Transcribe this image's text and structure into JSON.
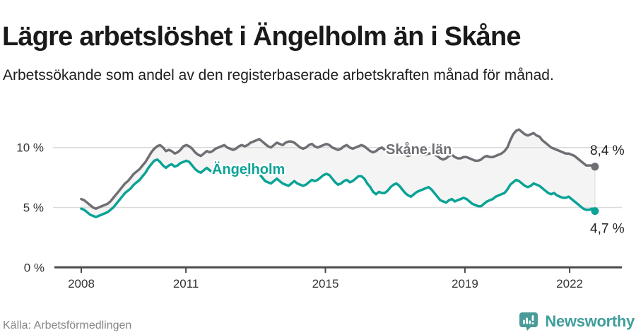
{
  "header": {
    "title": "Lägre arbetslöshet i Ängelholm än i Skåne",
    "subtitle": "Arbetssökande som andel av den registerbaserade arbetskraften månad för månad."
  },
  "footer": {
    "source": "Källa: Arbetsförmedlingen",
    "brand": "Newsworthy",
    "brand_icon": "newsworthy-chart-bubble-icon",
    "brand_color": "#3f9e9b"
  },
  "colors": {
    "skane_line": "#6e6e74",
    "angelholm_line": "#0aa396",
    "gridline": "#dadada",
    "axis": "#4b4b4b",
    "fill_between": "#f4f4f4",
    "fill_edge": "#e4e4e4",
    "tick_text": "#333333"
  },
  "chart_data": {
    "type": "line",
    "title": "Lägre arbetslöshet i Ängelholm än i Skåne",
    "subtitle": "Arbetssökande som andel av den registerbaserade arbetskraften månad för månad.",
    "xlabel": "",
    "ylabel": "",
    "frequency": "monthly",
    "x_start": {
      "year": 2008,
      "month": 1
    },
    "x_end": {
      "year": 2022,
      "month": 9
    },
    "ylim": [
      0,
      12.5
    ],
    "grid": "horizontal",
    "legend": "inline-labels",
    "fill_between_series": true,
    "x_ticks": [
      {
        "label": "2008"
      },
      {
        "label": "2011"
      },
      {
        "label": "2015"
      },
      {
        "label": "2019"
      },
      {
        "label": "2022"
      }
    ],
    "y_ticks": [
      {
        "value": 10,
        "label": "10 %"
      },
      {
        "value": 5,
        "label": "5 %"
      },
      {
        "value": 0,
        "label": "0 %"
      }
    ],
    "series": [
      {
        "name": "Skåne län",
        "color": "#6e6e74",
        "end_value": 8.4,
        "end_label": "8,4 %",
        "values": [
          5.7,
          5.6,
          5.4,
          5.2,
          5.0,
          4.9,
          5.0,
          5.1,
          5.2,
          5.3,
          5.5,
          5.8,
          6.1,
          6.4,
          6.7,
          7.0,
          7.2,
          7.5,
          7.8,
          8.0,
          8.2,
          8.5,
          8.8,
          9.2,
          9.6,
          9.9,
          10.1,
          10.2,
          10.0,
          9.7,
          9.8,
          9.7,
          9.5,
          9.6,
          9.8,
          10.1,
          10.2,
          10.1,
          9.9,
          9.6,
          9.4,
          9.3,
          9.5,
          9.7,
          9.6,
          9.7,
          9.9,
          10.0,
          10.1,
          10.2,
          10.0,
          9.9,
          9.8,
          9.9,
          10.1,
          10.2,
          10.1,
          10.2,
          10.4,
          10.5,
          10.6,
          10.7,
          10.5,
          10.3,
          10.1,
          10.0,
          10.2,
          10.4,
          10.3,
          10.2,
          10.4,
          10.5,
          10.5,
          10.4,
          10.2,
          10.0,
          9.9,
          10.0,
          10.2,
          10.3,
          10.1,
          10.0,
          10.1,
          10.2,
          10.3,
          10.2,
          10.0,
          9.9,
          9.8,
          9.9,
          10.1,
          10.2,
          10.0,
          9.9,
          10.0,
          10.1,
          10.2,
          10.1,
          9.9,
          9.7,
          9.6,
          9.7,
          9.9,
          10.0,
          9.8,
          9.7,
          9.7,
          9.8,
          9.8,
          9.7,
          9.5,
          9.4,
          9.3,
          9.4,
          9.6,
          9.7,
          9.5,
          9.4,
          9.4,
          9.5,
          9.5,
          9.4,
          9.3,
          9.1,
          9.0,
          9.1,
          9.3,
          9.4,
          9.2,
          9.1,
          9.1,
          9.2,
          9.2,
          9.1,
          9.0,
          8.9,
          8.9,
          9.0,
          9.2,
          9.3,
          9.2,
          9.2,
          9.3,
          9.4,
          9.5,
          9.7,
          10.0,
          10.6,
          11.1,
          11.4,
          11.5,
          11.3,
          11.1,
          11.0,
          11.1,
          11.2,
          11.0,
          10.9,
          10.6,
          10.4,
          10.2,
          10.0,
          9.9,
          9.8,
          9.7,
          9.6,
          9.5,
          9.5,
          9.4,
          9.3,
          9.1,
          8.9,
          8.7,
          8.5,
          8.5,
          8.5,
          8.4
        ]
      },
      {
        "name": "Ängelholm",
        "color": "#0aa396",
        "end_value": 4.7,
        "end_label": "4,7 %",
        "values": [
          4.9,
          4.8,
          4.6,
          4.4,
          4.3,
          4.2,
          4.3,
          4.4,
          4.5,
          4.6,
          4.8,
          5.0,
          5.3,
          5.6,
          5.9,
          6.2,
          6.4,
          6.6,
          6.9,
          7.1,
          7.3,
          7.6,
          7.9,
          8.3,
          8.6,
          8.9,
          9.0,
          8.8,
          8.5,
          8.3,
          8.5,
          8.6,
          8.4,
          8.5,
          8.7,
          8.8,
          8.9,
          8.8,
          8.5,
          8.2,
          8.0,
          7.9,
          8.1,
          8.3,
          8.1,
          7.9,
          8.0,
          8.1,
          8.2,
          8.3,
          8.1,
          7.9,
          7.7,
          7.6,
          7.8,
          8.0,
          7.8,
          7.7,
          7.8,
          7.9,
          7.9,
          7.8,
          7.5,
          7.2,
          7.1,
          7.0,
          7.2,
          7.4,
          7.2,
          7.0,
          6.9,
          6.8,
          7.0,
          7.2,
          7.0,
          6.9,
          6.8,
          6.9,
          7.1,
          7.3,
          7.2,
          7.3,
          7.5,
          7.7,
          7.8,
          7.7,
          7.4,
          7.1,
          6.9,
          7.0,
          7.2,
          7.3,
          7.1,
          7.2,
          7.4,
          7.6,
          7.6,
          7.4,
          7.0,
          6.7,
          6.3,
          6.1,
          6.3,
          6.2,
          6.2,
          6.4,
          6.7,
          6.9,
          7.0,
          6.8,
          6.5,
          6.2,
          6.0,
          5.9,
          6.1,
          6.3,
          6.4,
          6.5,
          6.6,
          6.7,
          6.5,
          6.2,
          5.9,
          5.6,
          5.5,
          5.4,
          5.6,
          5.7,
          5.5,
          5.6,
          5.7,
          5.8,
          5.7,
          5.5,
          5.3,
          5.2,
          5.1,
          5.1,
          5.3,
          5.5,
          5.6,
          5.7,
          5.9,
          6.0,
          6.1,
          6.2,
          6.5,
          6.9,
          7.1,
          7.3,
          7.2,
          7.0,
          6.8,
          6.7,
          6.8,
          7.0,
          6.9,
          6.8,
          6.6,
          6.4,
          6.2,
          6.1,
          6.2,
          6.0,
          5.9,
          5.8,
          5.8,
          5.9,
          5.7,
          5.5,
          5.3,
          5.1,
          4.9,
          4.8,
          4.8,
          4.9,
          4.7
        ]
      }
    ]
  }
}
